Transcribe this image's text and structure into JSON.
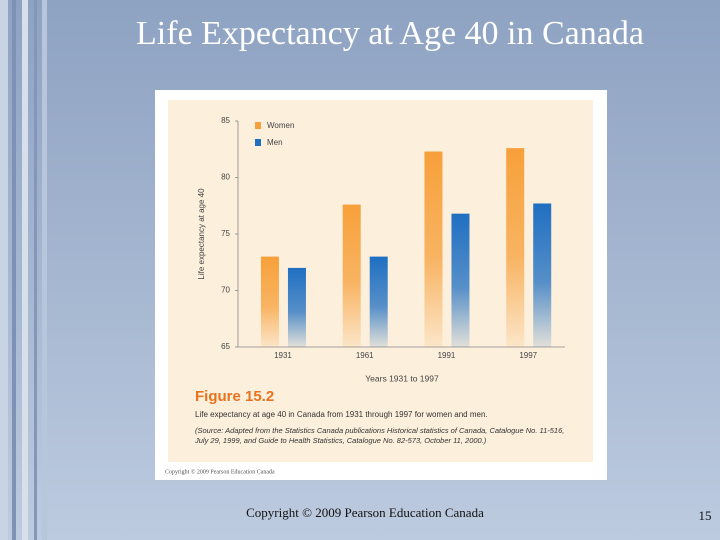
{
  "slide": {
    "title": "Life Expectancy at Age 40 in Canada",
    "footer": "Copyright © 2009 Pearson Education Canada",
    "page_number": 15
  },
  "figure": {
    "label": "Figure 15.2",
    "caption": "Life expectancy at age 40 in Canada from 1931 through 1997 for women and men.",
    "source": "(Source: Adapted from the Statistics Canada publications Historical statistics of Canada, Catalogue No. 11-516, July 29, 1999, and Guide to Health Statistics, Catalogue No. 82-573, October 11, 2000.)",
    "copyright": "Copyright © 2009 Pearson Education Canada"
  },
  "chart_data": {
    "type": "bar",
    "x_label": "Years 1931 to 1997",
    "y_label": "Life expectancy at age 40",
    "categories": [
      "1931",
      "1961",
      "1991",
      "1997"
    ],
    "series": [
      {
        "name": "Women",
        "color": "#f7a03a",
        "values": [
          73,
          77.6,
          82.3,
          82.6
        ]
      },
      {
        "name": "Men",
        "color": "#1f6fc2",
        "values": [
          72,
          73,
          76.8,
          77.7
        ]
      }
    ],
    "ylim": [
      65,
      85
    ],
    "yticks": [
      65,
      70,
      75,
      80,
      85
    ],
    "grid": false
  }
}
